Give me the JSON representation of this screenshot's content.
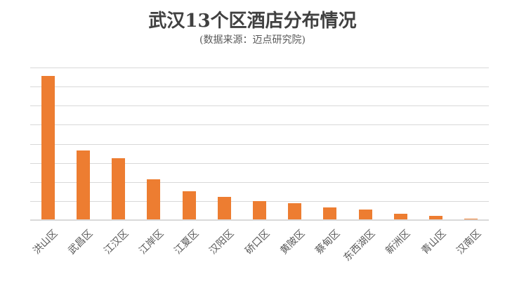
{
  "header": {
    "title": "武汉13个区酒店分布情况",
    "subtitle": "(数据来源：迈点研究院)"
  },
  "chart_data": {
    "type": "bar",
    "title": "武汉13个区酒店分布情况",
    "subtitle": "(数据来源：迈点研究院)",
    "categories": [
      "洪山区",
      "武昌区",
      "江汉区",
      "江岸区",
      "江夏区",
      "汉阳区",
      "硚口区",
      "黄陂区",
      "蔡甸区",
      "东西湖区",
      "新洲区",
      "青山区",
      "汉南区"
    ],
    "values": [
      755,
      365,
      324,
      214,
      153,
      122,
      98,
      89,
      65,
      55,
      33,
      24,
      7
    ],
    "xlabel": "",
    "ylabel": "",
    "ylim": [
      0,
      800
    ],
    "gridline_step": 100,
    "grid": true,
    "y_tick_labels_visible": false,
    "legend_position": "none",
    "category_label_rotation_deg": -45,
    "colors": {
      "bar": "#ED7D31",
      "gridline": "#D9D9D9",
      "axis_line": "#D9D9D9",
      "title": "#404040",
      "subtitle": "#595959",
      "category_label": "#595959",
      "background": "#FFFFFF"
    }
  }
}
